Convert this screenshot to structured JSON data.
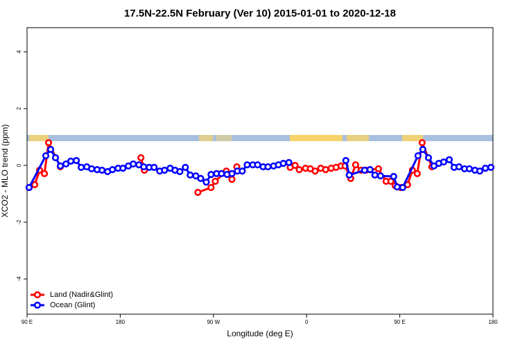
{
  "chart_data": {
    "type": "line",
    "title": "17.5N-22.5N February (Ver 10)   2015-01-01 to 2020-12-18",
    "x_label": "Longitude (deg E)",
    "y_label": "XCO2 - MLO trend (ppm)",
    "xlim": [
      90,
      540
    ],
    "ylim": [
      -5.24,
      4.85
    ],
    "xticks": [
      {
        "value": 90,
        "label": "90 E"
      },
      180,
      {
        "value": 270,
        "label": "90 W"
      },
      {
        "value": 360,
        "label": "0"
      },
      {
        "value": 450,
        "label": "90 E"
      },
      {
        "value": 540,
        "label": "180"
      }
    ],
    "yticks": [
      -4,
      -2,
      0,
      2,
      4
    ],
    "legend": "bottom-left",
    "series": [
      {
        "name": "Land (Nadir&Glint)",
        "color": "#ff0000",
        "x": [
          92.0,
          97.4,
          102.1,
          106.8,
          110.8,
          122.2,
          null,
          200.0,
          203.3,
          null,
          255.0,
          267.7,
          271.8,
          282.5,
          287.9,
          292.6,
          null,
          344.2,
          348.9,
          352.9,
          359.0,
          363.6,
          368.3,
          373.7,
          378.4,
          383.8,
          388.5,
          393.2,
          397.2,
          402.6,
          407.3,
          412.6,
          417.3,
          429.4,
          436.8,
          441.4,
          445.5,
          450.8,
          457.5,
          462.2,
          466.9,
          471.6,
          481.0
        ],
        "values": [
          -0.78,
          -0.68,
          -0.17,
          -0.29,
          0.8,
          -0.05,
          null,
          0.27,
          -0.17,
          null,
          -0.95,
          -0.78,
          -0.56,
          -0.2,
          -0.49,
          -0.05,
          null,
          -0.07,
          0.0,
          -0.15,
          -0.1,
          -0.12,
          -0.2,
          -0.1,
          -0.15,
          -0.1,
          -0.07,
          -0.02,
          -0.02,
          -0.46,
          0.02,
          -0.17,
          -0.17,
          -0.12,
          -0.56,
          -0.56,
          -0.71,
          -0.78,
          -0.68,
          -0.17,
          -0.29,
          0.8,
          -0.05
        ]
      },
      {
        "name": "Ocean (Glint)",
        "color": "#0000ff",
        "x": [
          92.0,
          108.1,
          112.8,
          117.5,
          122.2,
          127.6,
          132.3,
          137.6,
          142.3,
          147.7,
          152.4,
          157.7,
          162.4,
          167.8,
          172.5,
          177.9,
          182.6,
          187.9,
          192.6,
          198.0,
          202.7,
          208.0,
          212.7,
          218.1,
          222.8,
          228.2,
          232.9,
          237.6,
          242.9,
          247.6,
          253.0,
          257.7,
          263.1,
          267.7,
          273.1,
          277.8,
          283.2,
          287.9,
          293.2,
          297.9,
          302.6,
          308.0,
          312.7,
          318.0,
          322.7,
          328.1,
          332.8,
          337.5,
          342.9,
          null,
          397.9,
          401.2,
          416.0,
          421.3,
          426.0,
          431.4,
          444.1,
          447.5,
          452.8,
          467.6,
          472.3,
          477.7,
          483.0,
          487.7,
          492.4,
          497.8,
          502.5,
          507.2,
          512.6,
          517.2,
          522.6,
          527.3,
          532.7,
          538.0
        ],
        "values": [
          -0.78,
          0.34,
          0.56,
          0.27,
          -0.02,
          0.05,
          0.15,
          0.17,
          -0.07,
          -0.05,
          -0.12,
          -0.15,
          -0.17,
          -0.22,
          -0.15,
          -0.1,
          -0.1,
          -0.02,
          0.05,
          0.02,
          -0.05,
          -0.07,
          -0.07,
          -0.2,
          -0.17,
          -0.1,
          -0.17,
          -0.22,
          -0.07,
          -0.34,
          -0.37,
          -0.46,
          -0.59,
          -0.32,
          -0.29,
          -0.29,
          -0.32,
          -0.29,
          -0.2,
          -0.2,
          0.02,
          0.02,
          0.02,
          -0.05,
          -0.05,
          -0.02,
          0.02,
          0.07,
          0.1,
          null,
          0.17,
          -0.34,
          -0.17,
          -0.15,
          -0.34,
          -0.37,
          -0.39,
          -0.76,
          -0.78,
          0.34,
          0.56,
          0.27,
          -0.02,
          0.07,
          0.12,
          0.2,
          -0.07,
          -0.05,
          -0.12,
          -0.12,
          -0.17,
          -0.2,
          -0.1,
          -0.07
        ]
      }
    ]
  }
}
